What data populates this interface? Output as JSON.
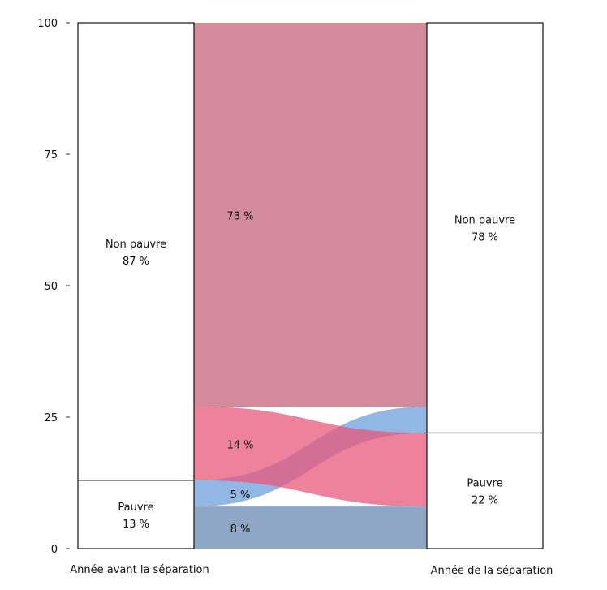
{
  "chart_data": {
    "type": "alluvial",
    "ylim": [
      0,
      100
    ],
    "yticks": [
      0,
      25,
      50,
      75,
      100
    ],
    "axes": [
      {
        "label": "Année avant la séparation",
        "strata": [
          {
            "name": "Pauvre",
            "value": 13,
            "pct_label": "13 %"
          },
          {
            "name": "Non pauvre",
            "value": 87,
            "pct_label": "87 %"
          }
        ]
      },
      {
        "label": "Année de la séparation",
        "strata": [
          {
            "name": "Pauvre",
            "value": 22,
            "pct_label": "22 %"
          },
          {
            "name": "Non pauvre",
            "value": 78,
            "pct_label": "78 %"
          }
        ]
      }
    ],
    "flows": [
      {
        "from": "Pauvre",
        "to": "Pauvre",
        "value": 8,
        "label": "8 %",
        "color": "#6a8ab0"
      },
      {
        "from": "Pauvre",
        "to": "Non pauvre",
        "value": 5,
        "label": "5 %",
        "color": "#6f9fdc"
      },
      {
        "from": "Non pauvre",
        "to": "Pauvre",
        "value": 14,
        "label": "14 %",
        "color": "#e8577a"
      },
      {
        "from": "Non pauvre",
        "to": "Non pauvre",
        "value": 73,
        "label": "73 %",
        "color": "#c4637a"
      }
    ]
  }
}
